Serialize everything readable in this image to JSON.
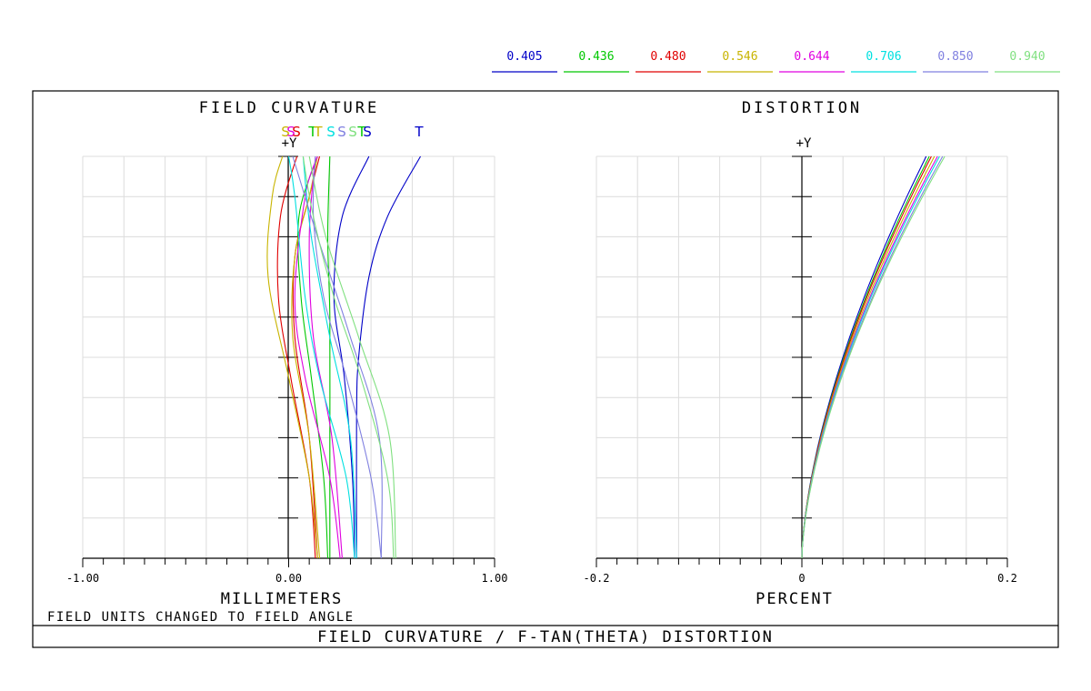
{
  "figure": {
    "title": "FIELD CURVATURE / F-TAN(THETA) DISTORTION",
    "note": "FIELD UNITS CHANGED TO FIELD ANGLE"
  },
  "legend": [
    {
      "label": "0.405",
      "color": "#0000c8"
    },
    {
      "label": "0.436",
      "color": "#00c800"
    },
    {
      "label": "0.480",
      "color": "#e00000"
    },
    {
      "label": "0.546",
      "color": "#c8b400"
    },
    {
      "label": "0.644",
      "color": "#e000e0"
    },
    {
      "label": "0.706",
      "color": "#00e0e0"
    },
    {
      "label": "0.850",
      "color": "#8080e0"
    },
    {
      "label": "0.940",
      "color": "#80e080"
    }
  ],
  "chart_data": [
    {
      "type": "line",
      "title": "FIELD CURVATURE",
      "xlabel": "MILLIMETERS",
      "ylabel": "+Y",
      "xlim": [
        -1.0,
        1.0
      ],
      "ylim": [
        0,
        1
      ],
      "x_ticks": [
        "-1.00",
        "0.00",
        "1.00"
      ],
      "grid": true,
      "curve_labels": [
        "S",
        "S",
        "S",
        "T",
        "T",
        "S",
        "S",
        "S",
        "T",
        "S",
        "T"
      ],
      "series": [
        {
          "color": "#0000c8",
          "curve": "T",
          "points": [
            [
              0.33,
              0
            ],
            [
              0.33,
              0.35
            ],
            [
              0.34,
              0.5
            ],
            [
              0.39,
              0.7
            ],
            [
              0.48,
              0.85
            ],
            [
              0.64,
              1.0
            ]
          ]
        },
        {
          "color": "#0000c8",
          "curve": "S",
          "points": [
            [
              0.32,
              0
            ],
            [
              0.31,
              0.2
            ],
            [
              0.27,
              0.45
            ],
            [
              0.22,
              0.65
            ],
            [
              0.26,
              0.85
            ],
            [
              0.39,
              1.0
            ]
          ]
        },
        {
          "color": "#00c800",
          "curve": "T",
          "points": [
            [
              0.19,
              0
            ],
            [
              0.17,
              0.2
            ],
            [
              0.11,
              0.45
            ],
            [
              0.06,
              0.65
            ],
            [
              0.05,
              0.85
            ],
            [
              0.14,
              1.0
            ]
          ]
        },
        {
          "color": "#00c800",
          "curve": "S",
          "points": [
            [
              0.2,
              0
            ],
            [
              0.2,
              0.3
            ],
            [
              0.2,
              0.6
            ],
            [
              0.19,
              0.8
            ],
            [
              0.2,
              1.0
            ]
          ]
        },
        {
          "color": "#e00000",
          "curve": "T",
          "points": [
            [
              0.13,
              0
            ],
            [
              0.1,
              0.2
            ],
            [
              0.01,
              0.45
            ],
            [
              -0.05,
              0.65
            ],
            [
              -0.04,
              0.85
            ],
            [
              0.04,
              1.0
            ]
          ]
        },
        {
          "color": "#e00000",
          "curve": "S",
          "points": [
            [
              0.14,
              0
            ],
            [
              0.1,
              0.3
            ],
            [
              0.03,
              0.55
            ],
            [
              0.03,
              0.75
            ],
            [
              0.1,
              0.9
            ],
            [
              0.15,
              1.0
            ]
          ]
        },
        {
          "color": "#c8b400",
          "curve": "T",
          "points": [
            [
              0.14,
              0
            ],
            [
              0.1,
              0.2
            ],
            [
              0.0,
              0.45
            ],
            [
              -0.1,
              0.7
            ],
            [
              -0.08,
              0.9
            ],
            [
              -0.03,
              1.0
            ]
          ]
        },
        {
          "color": "#c8b400",
          "curve": "S",
          "points": [
            [
              0.15,
              0
            ],
            [
              0.1,
              0.3
            ],
            [
              0.02,
              0.55
            ],
            [
              0.03,
              0.75
            ],
            [
              0.1,
              0.9
            ],
            [
              0.14,
              1.0
            ]
          ]
        },
        {
          "color": "#e000e0",
          "curve": "T",
          "points": [
            [
              0.25,
              0
            ],
            [
              0.2,
              0.2
            ],
            [
              0.08,
              0.45
            ],
            [
              0.03,
              0.65
            ],
            [
              0.08,
              0.9
            ],
            [
              0.14,
              1.0
            ]
          ]
        },
        {
          "color": "#e000e0",
          "curve": "S",
          "points": [
            [
              0.26,
              0
            ],
            [
              0.21,
              0.3
            ],
            [
              0.12,
              0.55
            ],
            [
              0.1,
              0.8
            ],
            [
              0.13,
              1.0
            ]
          ]
        },
        {
          "color": "#00e0e0",
          "curve": "T",
          "points": [
            [
              0.32,
              0
            ],
            [
              0.28,
              0.2
            ],
            [
              0.15,
              0.45
            ],
            [
              0.08,
              0.65
            ],
            [
              0.03,
              0.9
            ],
            [
              0.0,
              1.0
            ]
          ]
        },
        {
          "color": "#00e0e0",
          "curve": "S",
          "points": [
            [
              0.33,
              0
            ],
            [
              0.3,
              0.3
            ],
            [
              0.2,
              0.55
            ],
            [
              0.11,
              0.8
            ],
            [
              0.07,
              1.0
            ]
          ]
        },
        {
          "color": "#8080e0",
          "curve": "T",
          "points": [
            [
              0.45,
              0
            ],
            [
              0.4,
              0.2
            ],
            [
              0.28,
              0.45
            ],
            [
              0.17,
              0.65
            ],
            [
              0.12,
              0.85
            ],
            [
              0.13,
              1.0
            ]
          ]
        },
        {
          "color": "#8080e0",
          "curve": "S",
          "points": [
            [
              0.45,
              0
            ],
            [
              0.44,
              0.3
            ],
            [
              0.3,
              0.55
            ],
            [
              0.14,
              0.8
            ],
            [
              0.02,
              1.0
            ]
          ]
        },
        {
          "color": "#80e080",
          "curve": "T",
          "points": [
            [
              0.51,
              0
            ],
            [
              0.48,
              0.2
            ],
            [
              0.35,
              0.45
            ],
            [
              0.22,
              0.65
            ],
            [
              0.12,
              0.85
            ],
            [
              0.07,
              1.0
            ]
          ]
        },
        {
          "color": "#80e080",
          "curve": "S",
          "points": [
            [
              0.52,
              0
            ],
            [
              0.49,
              0.3
            ],
            [
              0.34,
              0.55
            ],
            [
              0.18,
              0.8
            ],
            [
              0.1,
              1.0
            ]
          ]
        }
      ]
    },
    {
      "type": "line",
      "title": "DISTORTION",
      "xlabel": "PERCENT",
      "ylabel": "+Y",
      "xlim": [
        -0.2,
        0.2
      ],
      "ylim": [
        0,
        1
      ],
      "x_ticks": [
        "-0.2",
        "0",
        "0.2"
      ],
      "grid": true,
      "series": [
        {
          "color": "#0000c8",
          "max_percent": 0.121
        },
        {
          "color": "#00c800",
          "max_percent": 0.124
        },
        {
          "color": "#e00000",
          "max_percent": 0.126
        },
        {
          "color": "#c8b400",
          "max_percent": 0.129
        },
        {
          "color": "#e000e0",
          "max_percent": 0.132
        },
        {
          "color": "#00e0e0",
          "max_percent": 0.134
        },
        {
          "color": "#8080e0",
          "max_percent": 0.137
        },
        {
          "color": "#80e080",
          "max_percent": 0.139
        }
      ]
    }
  ]
}
